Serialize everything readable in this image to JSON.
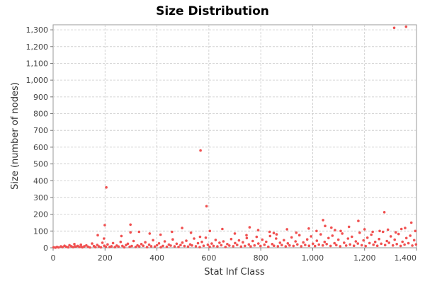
{
  "chart_data": {
    "type": "scatter",
    "title": "Size Distribution",
    "xlabel": "Stat Inf Class",
    "ylabel": "Size (number of nodes)",
    "xlim": [
      0,
      1400
    ],
    "ylim": [
      0,
      1330
    ],
    "x_ticks": [
      0,
      200,
      400,
      600,
      800,
      1000,
      1200,
      1400
    ],
    "x_tick_labels": [
      "0",
      "200",
      "400",
      "600",
      "800",
      "1,000",
      "1,200",
      "1,400"
    ],
    "y_ticks": [
      0,
      100,
      200,
      300,
      400,
      500,
      600,
      700,
      800,
      900,
      1000,
      1100,
      1200,
      1300
    ],
    "y_tick_labels": [
      "0",
      "100",
      "200",
      "300",
      "400",
      "500",
      "600",
      "700",
      "800",
      "900",
      "1,000",
      "1,100",
      "1,200",
      "1,300"
    ],
    "grid": true,
    "colors": {
      "points": "#f05050",
      "plot_background": "#ffffff",
      "plot_border": "#999999"
    },
    "series": [
      {
        "x": [
          2,
          9,
          15,
          21,
          30,
          36,
          44,
          51,
          58,
          63,
          70,
          77,
          82,
          88,
          95,
          101,
          107,
          113,
          120,
          128,
          135,
          142,
          150,
          157,
          163,
          170,
          176,
          184,
          190,
          197,
          203,
          210,
          218,
          225,
          231,
          238,
          245,
          252,
          260,
          267,
          274,
          281,
          288,
          295,
          303,
          310,
          318,
          325,
          332,
          340,
          347,
          355,
          362,
          370,
          378,
          385,
          392,
          400,
          408,
          415,
          423,
          430,
          438,
          446,
          453,
          461,
          468,
          476,
          483,
          491,
          498,
          506,
          513,
          520,
          528,
          535,
          543,
          550,
          558,
          565,
          573,
          580,
          588,
          596,
          603,
          611,
          618,
          626,
          633,
          641,
          648,
          656,
          664,
          671,
          679,
          686,
          694,
          701,
          709,
          716,
          724,
          731,
          739,
          746,
          754,
          761,
          769,
          776,
          784,
          791,
          799,
          806,
          814,
          821,
          829,
          836,
          844,
          851,
          859,
          866,
          874,
          881,
          889,
          896,
          904,
          911,
          919,
          926,
          934,
          941,
          949,
          956,
          964,
          971,
          979,
          986,
          994,
          1001,
          1009,
          1016,
          1024,
          1031,
          1039,
          1046,
          1054,
          1061,
          1069,
          1076,
          1084,
          1091,
          1099,
          1106,
          1114,
          1121,
          1129,
          1136,
          1144,
          1151,
          1159,
          1166,
          1174,
          1181,
          1189,
          1196,
          1204,
          1211,
          1219,
          1226,
          1234,
          1241,
          1249,
          1256,
          1264,
          1271,
          1279,
          1286,
          1294,
          1301,
          1309,
          1316,
          1324,
          1331,
          1339,
          1346,
          1354,
          1361,
          1369,
          1376,
          1384,
          1391,
          1398,
          85,
          110,
          172,
          196,
          263,
          298,
          331,
          372,
          414,
          458,
          497,
          531,
          566,
          604,
          652,
          700,
          745,
          757,
          790,
          834,
          850,
          861,
          901,
          937,
          985,
          1015,
          1040,
          1048,
          1072,
          1086,
          1108,
          1140,
          1176,
          1200,
          1231,
          1258,
          1290,
          1320,
          1342,
          1356,
          1380,
          1395,
          199,
          205,
          298,
          568,
          591,
          1276,
          1314,
          1360
        ],
        "y": [
          3,
          1,
          5,
          2,
          8,
          4,
          12,
          6,
          3,
          15,
          9,
          4,
          22,
          7,
          11,
          5,
          18,
          3,
          9,
          14,
          6,
          2,
          25,
          10,
          4,
          17,
          8,
          3,
          30,
          12,
          6,
          20,
          5,
          9,
          28,
          4,
          13,
          7,
          35,
          11,
          3,
          16,
          24,
          6,
          10,
          40,
          5,
          14,
          8,
          22,
          12,
          33,
          4,
          18,
          9,
          45,
          7,
          15,
          26,
          3,
          11,
          38,
          6,
          19,
          13,
          50,
          8,
          24,
          5,
          16,
          31,
          10,
          42,
          7,
          20,
          14,
          55,
          9,
          27,
          4,
          35,
          12,
          60,
          18,
          6,
          25,
          11,
          47,
          8,
          30,
          15,
          38,
          5,
          22,
          13,
          52,
          9,
          28,
          17,
          44,
          7,
          33,
          11,
          58,
          20,
          8,
          40,
          14,
          65,
          25,
          10,
          48,
          18,
          36,
          6,
          70,
          22,
          12,
          55,
          9,
          30,
          16,
          45,
          8,
          26,
          14,
          62,
          11,
          38,
          20,
          75,
          9,
          32,
          17,
          50,
          12,
          68,
          24,
          10,
          42,
          19,
          80,
          14,
          35,
          22,
          58,
          11,
          72,
          27,
          16,
          48,
          9,
          85,
          30,
          13,
          55,
          20,
          66,
          12,
          38,
          25,
          90,
          15,
          44,
          10,
          60,
          28,
          78,
          18,
          35,
          12,
          52,
          24,
          95,
          16,
          40,
          30,
          68,
          14,
          48,
          22,
          82,
          11,
          36,
          19,
          58,
          27,
          72,
          13,
          45,
          20,
          8,
          5,
          75,
          55,
          70,
          92,
          95,
          85,
          78,
          95,
          118,
          90,
          65,
          100,
          112,
          85,
          75,
          122,
          105,
          95,
          88,
          80,
          110,
          90,
          115,
          100,
          165,
          130,
          120,
          105,
          100,
          125,
          160,
          110,
          95,
          100,
          108,
          92,
          112,
          118,
          150,
          100,
          135,
          360,
          138,
          580,
          248,
          212,
          1312,
          1318
        ]
      }
    ]
  }
}
